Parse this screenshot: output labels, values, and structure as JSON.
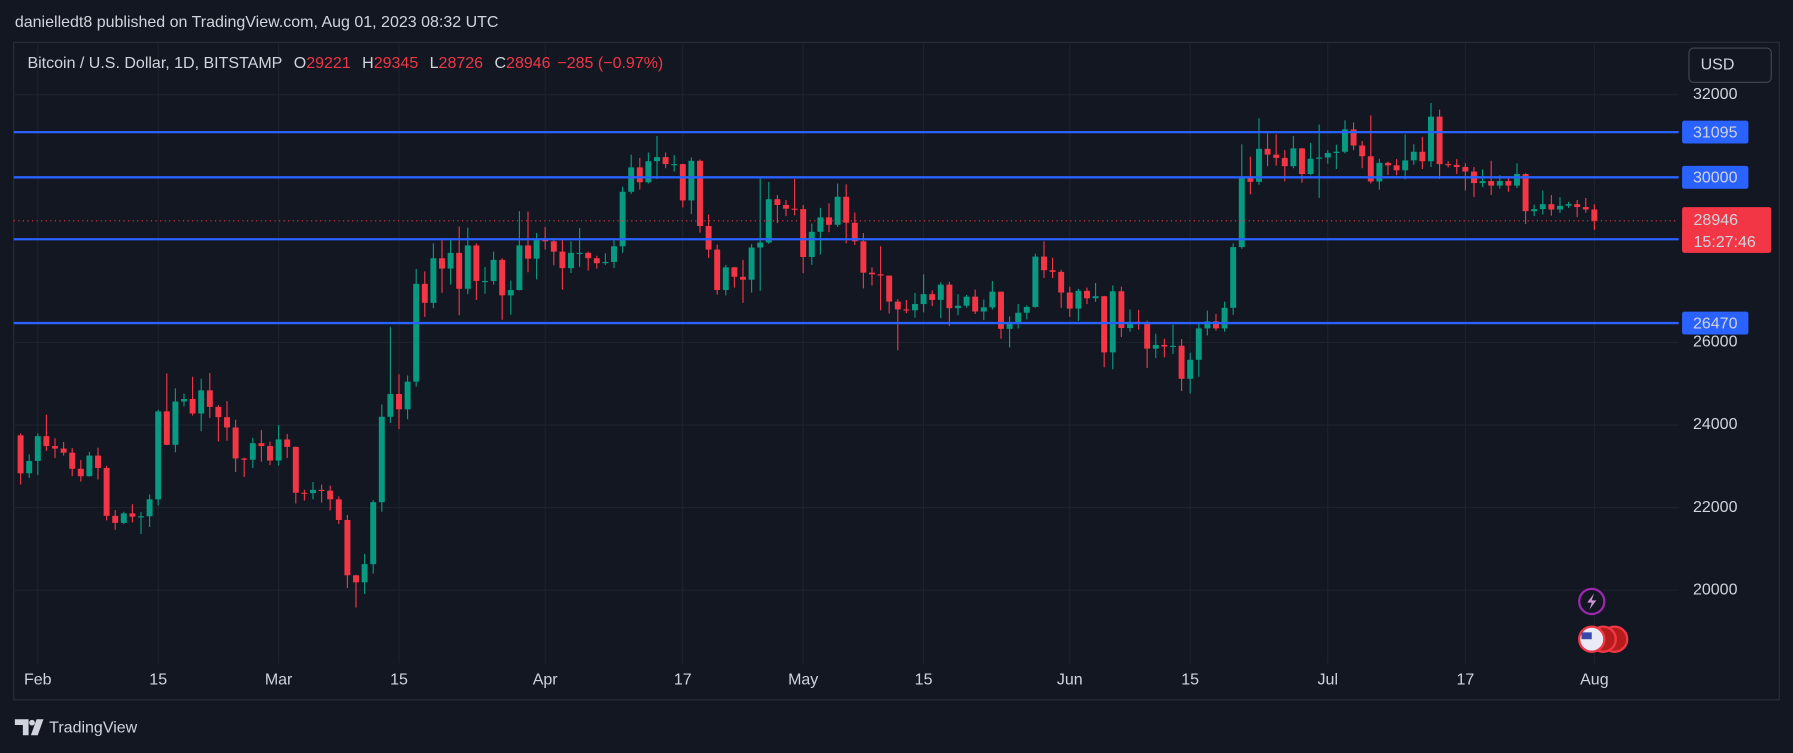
{
  "header": {
    "byline": "danielledt8 published on TradingView.com, Aug 01, 2023 08:32 UTC"
  },
  "footer": {
    "brand": "TradingView"
  },
  "chart_data": {
    "type": "candlestick",
    "title": "Bitcoin / U.S. Dollar, 1D, BITSTAMP",
    "ohlc_labels": [
      "O",
      "H",
      "L",
      "C"
    ],
    "change": "−285 (−0.97%)",
    "currency": "USD",
    "countdown": "15:27:46",
    "up_color": "#089981",
    "down_color": "#f23645",
    "level_color": "#2962ff",
    "grid": true,
    "xlim": [
      -0.8,
      192.8
    ],
    "ylim": [
      18230,
      33270
    ],
    "xticks": [
      {
        "value": 2,
        "label": "Feb"
      },
      {
        "value": 16,
        "label": "15"
      },
      {
        "value": 30,
        "label": "Mar"
      },
      {
        "value": 44,
        "label": "15"
      },
      {
        "value": 61,
        "label": "Apr"
      },
      {
        "value": 77,
        "label": "17"
      },
      {
        "value": 91,
        "label": "May"
      },
      {
        "value": 105,
        "label": "15"
      },
      {
        "value": 122,
        "label": "Jun"
      },
      {
        "value": 136,
        "label": "15"
      },
      {
        "value": 152,
        "label": "Jul"
      },
      {
        "value": 168,
        "label": "17"
      },
      {
        "value": 183,
        "label": "Aug"
      }
    ],
    "yticks": [
      20000,
      22000,
      24000,
      26000,
      32000
    ],
    "levels": [
      31095,
      30000,
      28500,
      26470
    ],
    "candles": [
      [
        23750,
        23800,
        22560,
        22830
      ],
      [
        22830,
        23290,
        22720,
        23130
      ],
      [
        23130,
        23800,
        22790,
        23730
      ],
      [
        23730,
        24250,
        23370,
        23490
      ],
      [
        23490,
        23680,
        23200,
        23430
      ],
      [
        23430,
        23590,
        23260,
        23330
      ],
      [
        23330,
        23440,
        22760,
        22940
      ],
      [
        22940,
        23150,
        22630,
        22760
      ],
      [
        22760,
        23350,
        22750,
        23260
      ],
      [
        23260,
        23450,
        22680,
        22960
      ],
      [
        22960,
        23010,
        21690,
        21800
      ],
      [
        21800,
        21940,
        21460,
        21630
      ],
      [
        21630,
        21900,
        21600,
        21860
      ],
      [
        21860,
        22080,
        21640,
        21780
      ],
      [
        21780,
        21890,
        21360,
        21790
      ],
      [
        21790,
        22320,
        21530,
        22200
      ],
      [
        22200,
        24370,
        22050,
        24330
      ],
      [
        24330,
        25250,
        23510,
        23520
      ],
      [
        23520,
        24890,
        23340,
        24570
      ],
      [
        24570,
        24760,
        24450,
        24630
      ],
      [
        24630,
        25170,
        24230,
        24280
      ],
      [
        24280,
        25120,
        23850,
        24840
      ],
      [
        24840,
        25260,
        24170,
        24440
      ],
      [
        24440,
        24480,
        23600,
        24190
      ],
      [
        24190,
        24580,
        23620,
        23940
      ],
      [
        23940,
        24130,
        22860,
        23190
      ],
      [
        23190,
        23210,
        22740,
        23160
      ],
      [
        23160,
        23690,
        22960,
        23560
      ],
      [
        23560,
        23880,
        23110,
        23490
      ],
      [
        23490,
        23600,
        23030,
        23140
      ],
      [
        23140,
        24000,
        23020,
        23650
      ],
      [
        23650,
        23780,
        23200,
        23470
      ],
      [
        23470,
        23480,
        22100,
        22360
      ],
      [
        22360,
        22430,
        22170,
        22350
      ],
      [
        22350,
        22620,
        22200,
        22430
      ],
      [
        22430,
        22560,
        22120,
        22410
      ],
      [
        22410,
        22530,
        21930,
        22200
      ],
      [
        22200,
        22270,
        21600,
        21700
      ],
      [
        21700,
        21820,
        20050,
        20360
      ],
      [
        20360,
        20370,
        19580,
        20190
      ],
      [
        20190,
        20880,
        19910,
        20630
      ],
      [
        20630,
        22180,
        20400,
        22130
      ],
      [
        22130,
        24500,
        21900,
        24200
      ],
      [
        24200,
        26380,
        24050,
        24750
      ],
      [
        24750,
        25230,
        23900,
        24380
      ],
      [
        24380,
        25200,
        24140,
        25050
      ],
      [
        25050,
        27780,
        24930,
        27420
      ],
      [
        27420,
        27720,
        26620,
        26960
      ],
      [
        26960,
        28400,
        26830,
        28040
      ],
      [
        28040,
        28530,
        27200,
        27790
      ],
      [
        27790,
        28480,
        27400,
        28170
      ],
      [
        28170,
        28810,
        26660,
        27300
      ],
      [
        27300,
        28780,
        27170,
        28350
      ],
      [
        28350,
        28400,
        27030,
        27490
      ],
      [
        27490,
        27830,
        27180,
        27490
      ],
      [
        27490,
        28200,
        27400,
        28000
      ],
      [
        28000,
        28040,
        26550,
        27140
      ],
      [
        27140,
        27500,
        26670,
        27270
      ],
      [
        27270,
        29180,
        27260,
        28350
      ],
      [
        28350,
        29170,
        27700,
        28030
      ],
      [
        28030,
        28650,
        27530,
        28480
      ],
      [
        28480,
        28800,
        28250,
        28450
      ],
      [
        28450,
        28530,
        27870,
        28200
      ],
      [
        28200,
        28480,
        27280,
        27800
      ],
      [
        27800,
        28450,
        27680,
        28170
      ],
      [
        28170,
        28770,
        27830,
        28170
      ],
      [
        28170,
        28200,
        27740,
        28040
      ],
      [
        28040,
        28100,
        27790,
        27920
      ],
      [
        27920,
        28160,
        27880,
        27950
      ],
      [
        27950,
        28500,
        27800,
        28330
      ],
      [
        28330,
        29770,
        28170,
        29650
      ],
      [
        29650,
        30550,
        29600,
        30240
      ],
      [
        30240,
        30470,
        29700,
        29880
      ],
      [
        29880,
        30600,
        29850,
        30390
      ],
      [
        30390,
        31000,
        29960,
        30490
      ],
      [
        30490,
        30600,
        30220,
        30320
      ],
      [
        30320,
        30540,
        30140,
        30320
      ],
      [
        30320,
        30330,
        29270,
        29440
      ],
      [
        29440,
        30480,
        29110,
        30400
      ],
      [
        30400,
        30430,
        28660,
        28820
      ],
      [
        28820,
        29100,
        28050,
        28250
      ],
      [
        28250,
        28370,
        27160,
        27270
      ],
      [
        27270,
        27880,
        27140,
        27820
      ],
      [
        27820,
        27830,
        27330,
        27590
      ],
      [
        27590,
        28000,
        26960,
        27520
      ],
      [
        27520,
        28380,
        27210,
        28300
      ],
      [
        28300,
        30020,
        27250,
        28420
      ],
      [
        28420,
        29890,
        28390,
        29470
      ],
      [
        29470,
        29570,
        28890,
        29330
      ],
      [
        29330,
        29450,
        29060,
        29240
      ],
      [
        29240,
        29960,
        29080,
        29230
      ],
      [
        29230,
        29330,
        27680,
        28070
      ],
      [
        28070,
        28880,
        27880,
        28680
      ],
      [
        28680,
        29260,
        28130,
        29030
      ],
      [
        29030,
        29370,
        28670,
        28850
      ],
      [
        28850,
        29850,
        28800,
        29530
      ],
      [
        29530,
        29830,
        28400,
        28900
      ],
      [
        28900,
        29150,
        28360,
        28450
      ],
      [
        28450,
        28650,
        27310,
        27690
      ],
      [
        27690,
        27820,
        27380,
        27650
      ],
      [
        27650,
        28330,
        26780,
        27620
      ],
      [
        27620,
        27620,
        26700,
        26990
      ],
      [
        26990,
        27050,
        25810,
        26800
      ],
      [
        26800,
        27030,
        26710,
        26780
      ],
      [
        26780,
        27200,
        26600,
        26930
      ],
      [
        26930,
        27650,
        26730,
        27170
      ],
      [
        27170,
        27260,
        26880,
        27030
      ],
      [
        27030,
        27460,
        26590,
        27400
      ],
      [
        27400,
        27470,
        26400,
        26830
      ],
      [
        26830,
        27170,
        26660,
        26890
      ],
      [
        26890,
        27150,
        26840,
        27110
      ],
      [
        27110,
        27280,
        26690,
        26750
      ],
      [
        26750,
        27040,
        26540,
        26850
      ],
      [
        26850,
        27490,
        26800,
        27230
      ],
      [
        27230,
        27230,
        26090,
        26330
      ],
      [
        26330,
        26630,
        25880,
        26470
      ],
      [
        26470,
        26930,
        26340,
        26720
      ],
      [
        26720,
        26900,
        26560,
        26860
      ],
      [
        26860,
        28150,
        26840,
        28080
      ],
      [
        28080,
        28450,
        27560,
        27750
      ],
      [
        27750,
        28050,
        27560,
        27710
      ],
      [
        27710,
        27760,
        26840,
        27210
      ],
      [
        27210,
        27350,
        26620,
        26820
      ],
      [
        26820,
        27300,
        26520,
        27250
      ],
      [
        27250,
        27330,
        26930,
        27070
      ],
      [
        27070,
        27440,
        26980,
        27120
      ],
      [
        27120,
        27130,
        25400,
        25760
      ],
      [
        25760,
        27380,
        25350,
        27240
      ],
      [
        27240,
        27350,
        26130,
        26350
      ],
      [
        26350,
        26800,
        26260,
        26500
      ],
      [
        26500,
        26790,
        26310,
        26480
      ],
      [
        26480,
        26530,
        25380,
        25850
      ],
      [
        25850,
        26210,
        25620,
        25940
      ],
      [
        25940,
        26090,
        25640,
        25900
      ],
      [
        25900,
        26430,
        25720,
        25920
      ],
      [
        25920,
        26080,
        24820,
        25120
      ],
      [
        25120,
        25750,
        24760,
        25580
      ],
      [
        25580,
        26470,
        25170,
        26340
      ],
      [
        26340,
        26770,
        26170,
        26510
      ],
      [
        26510,
        26690,
        26290,
        26340
      ],
      [
        26340,
        26990,
        26260,
        26840
      ],
      [
        26840,
        28400,
        26670,
        28310
      ],
      [
        28310,
        30800,
        28270,
        30010
      ],
      [
        30010,
        30500,
        29590,
        29890
      ],
      [
        29890,
        31430,
        29820,
        30690
      ],
      [
        30690,
        31060,
        30270,
        30550
      ],
      [
        30550,
        31040,
        30280,
        30470
      ],
      [
        30470,
        30660,
        29900,
        30270
      ],
      [
        30270,
        31000,
        30220,
        30700
      ],
      [
        30700,
        30710,
        29870,
        30080
      ],
      [
        30080,
        30830,
        30050,
        30450
      ],
      [
        30450,
        31280,
        29500,
        30480
      ],
      [
        30480,
        30660,
        30330,
        30590
      ],
      [
        30590,
        30790,
        30200,
        30620
      ],
      [
        30620,
        31380,
        30580,
        31160
      ],
      [
        31160,
        31330,
        30660,
        30770
      ],
      [
        30770,
        30880,
        30220,
        30510
      ],
      [
        30510,
        31500,
        29850,
        29900
      ],
      [
        29900,
        30450,
        29700,
        30350
      ],
      [
        30350,
        30380,
        30060,
        30290
      ],
      [
        30290,
        30440,
        30050,
        30170
      ],
      [
        30170,
        31040,
        29950,
        30410
      ],
      [
        30410,
        30800,
        30300,
        30620
      ],
      [
        30620,
        30980,
        30200,
        30390
      ],
      [
        30390,
        31800,
        30250,
        31470
      ],
      [
        31470,
        31640,
        29960,
        30320
      ],
      [
        30320,
        30390,
        30240,
        30300
      ],
      [
        30300,
        30440,
        30080,
        30250
      ],
      [
        30250,
        30340,
        29680,
        30140
      ],
      [
        30140,
        30250,
        29520,
        29860
      ],
      [
        29860,
        30190,
        29760,
        29910
      ],
      [
        29910,
        30400,
        29570,
        29800
      ],
      [
        29800,
        30050,
        29730,
        29910
      ],
      [
        29910,
        29980,
        29650,
        29800
      ],
      [
        29800,
        30340,
        29740,
        30080
      ],
      [
        30080,
        30100,
        28870,
        29180
      ],
      [
        29180,
        29340,
        29060,
        29230
      ],
      [
        29230,
        29680,
        29100,
        29350
      ],
      [
        29350,
        29570,
        29070,
        29220
      ],
      [
        29220,
        29520,
        29140,
        29310
      ],
      [
        29310,
        29410,
        29260,
        29350
      ],
      [
        29350,
        29450,
        29040,
        29280
      ],
      [
        29280,
        29500,
        29140,
        29221
      ],
      [
        29221,
        29345,
        28726,
        28946
      ]
    ]
  }
}
